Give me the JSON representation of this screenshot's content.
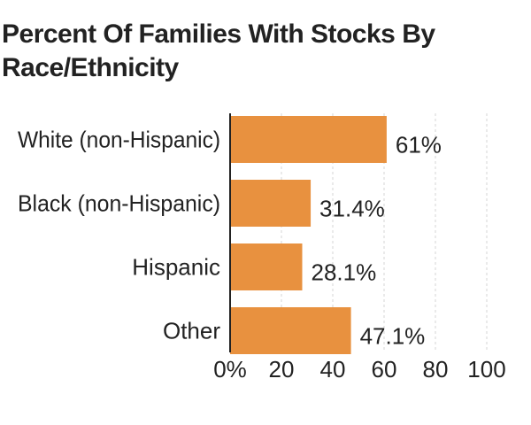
{
  "chart_data": {
    "type": "bar",
    "orientation": "horizontal",
    "title": "Percent Of Families With Stocks By Race/Ethnicity",
    "categories": [
      "White (non-Hispanic)",
      "Black (non-Hispanic)",
      "Hispanic",
      "Other"
    ],
    "values": [
      61,
      31.4,
      28.1,
      47.1
    ],
    "value_labels": [
      "61%",
      "31.4%",
      "28.1%",
      "47.1%"
    ],
    "xlim": [
      0,
      100
    ],
    "xticks": [
      0,
      20,
      40,
      60,
      80,
      100
    ],
    "xtick_labels": [
      "0%",
      "20",
      "40",
      "60",
      "80",
      "100"
    ],
    "grid": true,
    "colors": {
      "bar": "#e8913f",
      "text": "#222222",
      "grid": "#d4d4d4",
      "axis": "#222222"
    }
  }
}
